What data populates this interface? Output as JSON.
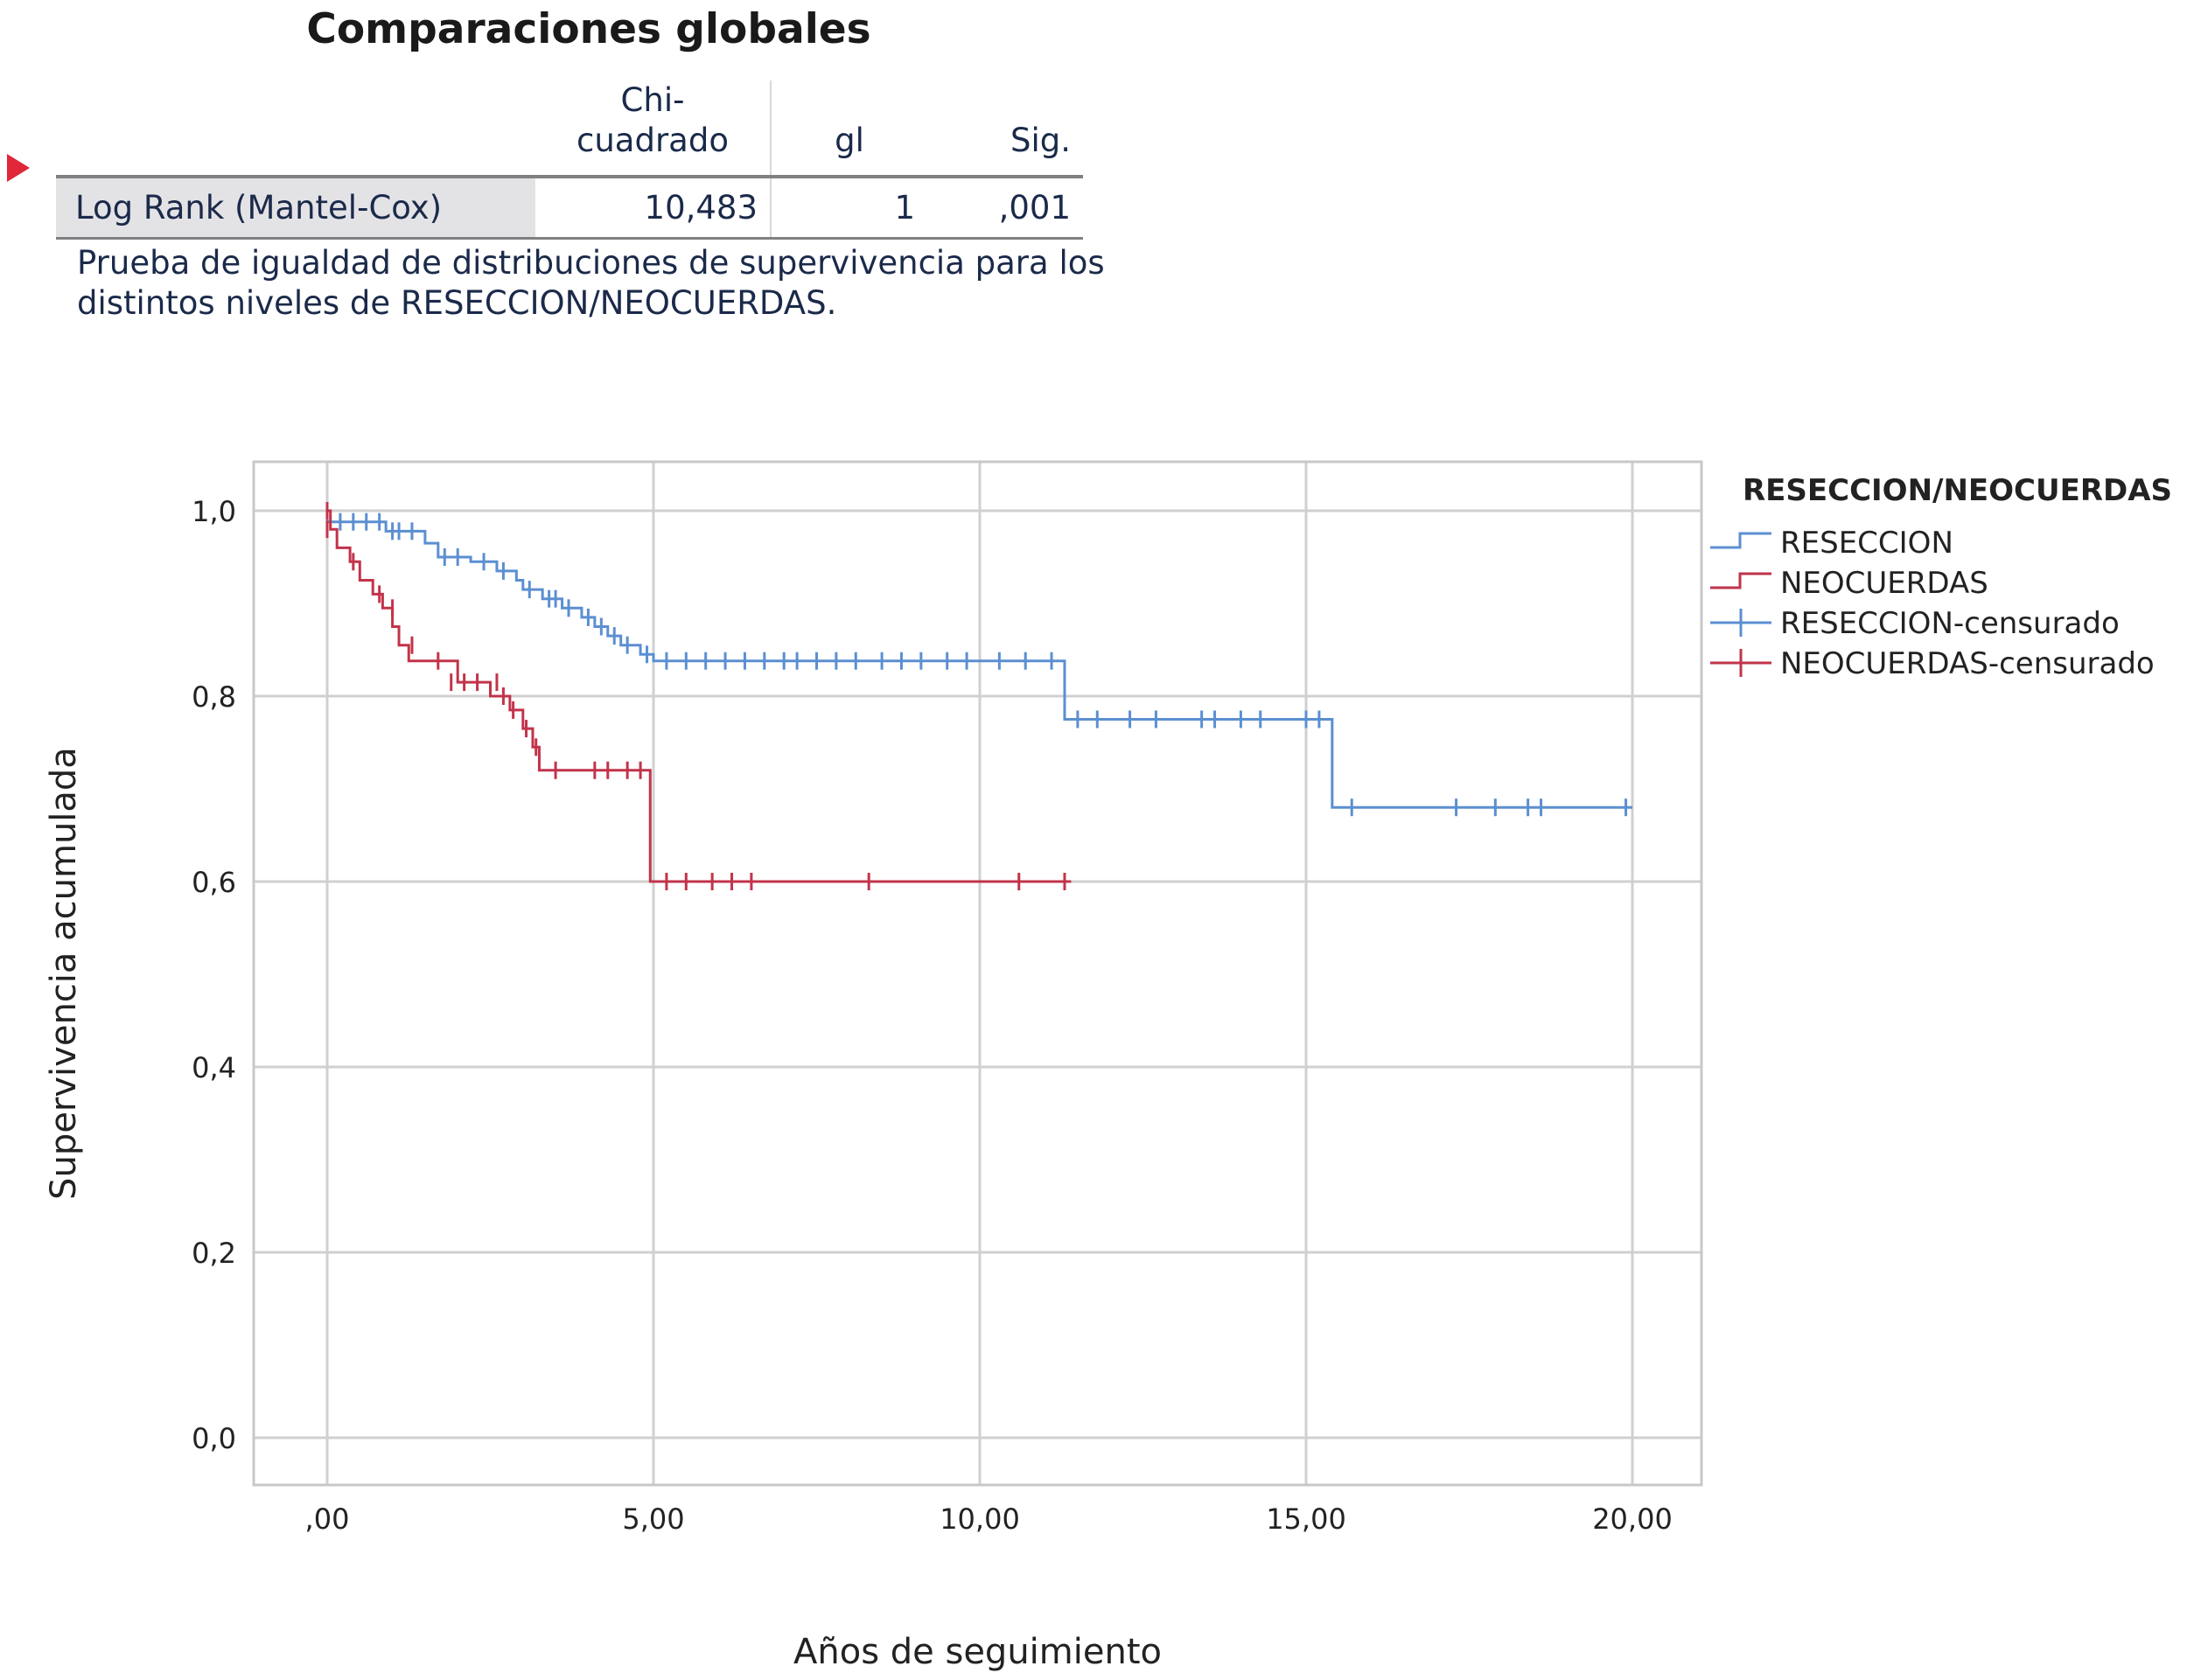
{
  "table": {
    "title": "Comparaciones globales",
    "headers": {
      "stat": "Chi-\ncuadrado",
      "df": "gl",
      "sig": "Sig."
    },
    "row": {
      "label": "Log Rank (Mantel-Cox)",
      "stat": "10,483",
      "df": "1",
      "sig": ",001"
    },
    "footnote": "Prueba de igualdad de distribuciones de supervivencia para los distintos niveles de RESECCION/NEOCUERDAS."
  },
  "colors": {
    "reseccion": "#5b8fd1",
    "neocuerdas": "#c2334a",
    "grid": "#d0d0d0",
    "marker": "#e0283a"
  },
  "chart_data": {
    "type": "line",
    "step": true,
    "xlabel": "Años de seguimiento",
    "ylabel": "Supervivencia acumulada",
    "xlim": [
      0,
      20
    ],
    "ylim": [
      0,
      1
    ],
    "x_ticks": [
      0,
      5,
      10,
      15,
      20
    ],
    "x_tick_labels": [
      ",00",
      "5,00",
      "10,00",
      "15,00",
      "20,00"
    ],
    "y_ticks": [
      0,
      0.2,
      0.4,
      0.6,
      0.8,
      1.0
    ],
    "y_tick_labels": [
      "0,0",
      "0,2",
      "0,4",
      "0,6",
      "0,8",
      "1,0"
    ],
    "grid": true,
    "legend": {
      "title": "RESECCION/NEOCUERDAS",
      "position": "right",
      "entries": [
        "RESECCION",
        "NEOCUERDAS",
        "RESECCION-censurado",
        "NEOCUERDAS-censurado"
      ]
    },
    "series": [
      {
        "name": "RESECCION",
        "color_key": "reseccion",
        "steps": [
          [
            0,
            1.0
          ],
          [
            0.0,
            0.988
          ],
          [
            0.9,
            0.978
          ],
          [
            1.5,
            0.965
          ],
          [
            1.7,
            0.95
          ],
          [
            2.2,
            0.945
          ],
          [
            2.6,
            0.935
          ],
          [
            2.9,
            0.925
          ],
          [
            3.0,
            0.915
          ],
          [
            3.3,
            0.905
          ],
          [
            3.6,
            0.895
          ],
          [
            3.9,
            0.885
          ],
          [
            4.1,
            0.875
          ],
          [
            4.3,
            0.865
          ],
          [
            4.5,
            0.855
          ],
          [
            4.8,
            0.845
          ],
          [
            5.0,
            0.838
          ],
          [
            11.3,
            0.775
          ],
          [
            15.4,
            0.68
          ],
          [
            20.0,
            0.68
          ]
        ],
        "censored": [
          [
            0.2,
            0.988
          ],
          [
            0.4,
            0.988
          ],
          [
            0.6,
            0.988
          ],
          [
            0.8,
            0.988
          ],
          [
            1.0,
            0.978
          ],
          [
            1.1,
            0.978
          ],
          [
            1.3,
            0.978
          ],
          [
            1.8,
            0.95
          ],
          [
            2.0,
            0.95
          ],
          [
            2.4,
            0.945
          ],
          [
            2.7,
            0.935
          ],
          [
            3.1,
            0.915
          ],
          [
            3.4,
            0.905
          ],
          [
            3.5,
            0.905
          ],
          [
            3.7,
            0.895
          ],
          [
            4.0,
            0.885
          ],
          [
            4.2,
            0.875
          ],
          [
            4.4,
            0.865
          ],
          [
            4.6,
            0.855
          ],
          [
            4.9,
            0.845
          ],
          [
            5.2,
            0.838
          ],
          [
            5.5,
            0.838
          ],
          [
            5.8,
            0.838
          ],
          [
            6.1,
            0.838
          ],
          [
            6.4,
            0.838
          ],
          [
            6.7,
            0.838
          ],
          [
            7.0,
            0.838
          ],
          [
            7.2,
            0.838
          ],
          [
            7.5,
            0.838
          ],
          [
            7.8,
            0.838
          ],
          [
            8.1,
            0.838
          ],
          [
            8.5,
            0.838
          ],
          [
            8.8,
            0.838
          ],
          [
            9.1,
            0.838
          ],
          [
            9.5,
            0.838
          ],
          [
            9.8,
            0.838
          ],
          [
            10.3,
            0.838
          ],
          [
            10.7,
            0.838
          ],
          [
            11.1,
            0.838
          ],
          [
            11.5,
            0.775
          ],
          [
            11.8,
            0.775
          ],
          [
            12.3,
            0.775
          ],
          [
            12.7,
            0.775
          ],
          [
            13.4,
            0.775
          ],
          [
            13.6,
            0.775
          ],
          [
            14.0,
            0.775
          ],
          [
            14.3,
            0.775
          ],
          [
            15.0,
            0.775
          ],
          [
            15.2,
            0.775
          ],
          [
            15.7,
            0.68
          ],
          [
            17.3,
            0.68
          ],
          [
            17.9,
            0.68
          ],
          [
            18.4,
            0.68
          ],
          [
            18.6,
            0.68
          ],
          [
            19.9,
            0.68
          ]
        ]
      },
      {
        "name": "NEOCUERDAS",
        "color_key": "neocuerdas",
        "steps": [
          [
            0,
            1.0
          ],
          [
            0.05,
            0.98
          ],
          [
            0.15,
            0.96
          ],
          [
            0.35,
            0.945
          ],
          [
            0.5,
            0.925
          ],
          [
            0.7,
            0.91
          ],
          [
            0.85,
            0.895
          ],
          [
            1.0,
            0.875
          ],
          [
            1.1,
            0.855
          ],
          [
            1.25,
            0.838
          ],
          [
            2.0,
            0.815
          ],
          [
            2.5,
            0.8
          ],
          [
            2.8,
            0.785
          ],
          [
            3.0,
            0.765
          ],
          [
            3.15,
            0.745
          ],
          [
            3.25,
            0.72
          ],
          [
            4.95,
            0.6
          ],
          [
            11.4,
            0.6
          ]
        ],
        "censored": [
          [
            0.0,
            1.0
          ],
          [
            0.0,
            0.98
          ],
          [
            0.4,
            0.945
          ],
          [
            0.8,
            0.91
          ],
          [
            1.0,
            0.895
          ],
          [
            1.3,
            0.855
          ],
          [
            1.7,
            0.838
          ],
          [
            1.9,
            0.815
          ],
          [
            2.1,
            0.815
          ],
          [
            2.3,
            0.815
          ],
          [
            2.6,
            0.815
          ],
          [
            2.7,
            0.8
          ],
          [
            2.85,
            0.785
          ],
          [
            3.05,
            0.765
          ],
          [
            3.2,
            0.745
          ],
          [
            3.5,
            0.72
          ],
          [
            4.1,
            0.72
          ],
          [
            4.3,
            0.72
          ],
          [
            4.6,
            0.72
          ],
          [
            4.8,
            0.72
          ],
          [
            5.2,
            0.6
          ],
          [
            5.5,
            0.6
          ],
          [
            5.9,
            0.6
          ],
          [
            6.2,
            0.6
          ],
          [
            6.5,
            0.6
          ],
          [
            8.3,
            0.6
          ],
          [
            10.6,
            0.6
          ],
          [
            11.3,
            0.6
          ]
        ]
      }
    ]
  }
}
